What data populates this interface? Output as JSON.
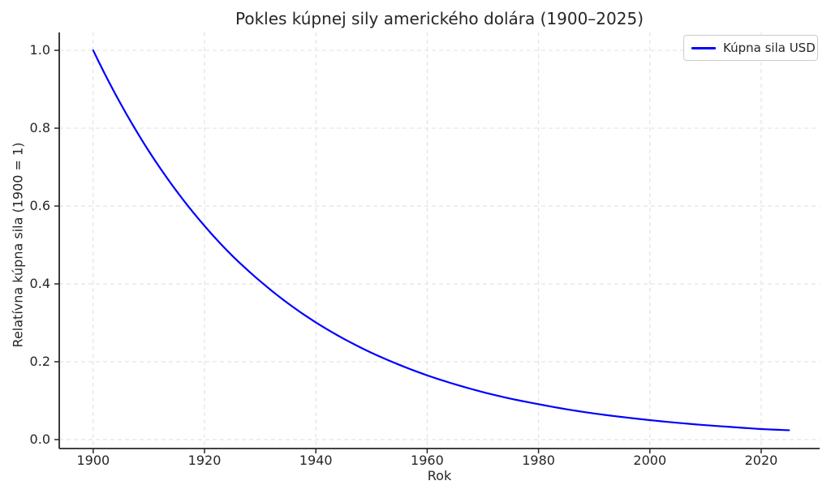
{
  "figure": {
    "title": "Pokles kúpnej sily amerického dolára (1900–2025)",
    "legend": {
      "label": "Kúpna sila USD"
    },
    "colors": {
      "line": "#0000ff",
      "grid": "#e3e3e3",
      "spine": "#262626",
      "tick": "#262626",
      "text": "#262626",
      "legend_border": "#cccccc",
      "background": "#ffffff"
    }
  },
  "chart_data": {
    "type": "line",
    "title": "Pokles kúpnej sily amerického dolára (1900–2025)",
    "xlabel": "Rok",
    "ylabel": "Relatívna kúpna sila (1900 = 1)",
    "legend_position": "upper right",
    "grid": true,
    "grid_style": "dashed",
    "xlim": [
      1893.9,
      2030.5
    ],
    "ylim": [
      -0.023,
      1.046
    ],
    "xticks": [
      1900,
      1920,
      1940,
      1960,
      1980,
      2000,
      2020
    ],
    "xtick_labels": [
      "1900",
      "1920",
      "1940",
      "1960",
      "1980",
      "2000",
      "2020"
    ],
    "yticks": [
      0.0,
      0.2,
      0.4,
      0.6,
      0.8,
      1.0
    ],
    "ytick_labels": [
      "0.0",
      "0.2",
      "0.4",
      "0.6",
      "0.8",
      "1.0"
    ],
    "series": [
      {
        "name": "Kúpna sila USD",
        "color": "#0000ff",
        "interpolation": "exponential",
        "x": [
          1900,
          1905,
          1910,
          1915,
          1920,
          1925,
          1930,
          1935,
          1940,
          1945,
          1950,
          1955,
          1960,
          1965,
          1970,
          1975,
          1980,
          1985,
          1990,
          1995,
          2000,
          2005,
          2010,
          2015,
          2020,
          2025
        ],
        "y": [
          1.0,
          0.861,
          0.741,
          0.638,
          0.549,
          0.472,
          0.407,
          0.35,
          0.301,
          0.259,
          0.223,
          0.192,
          0.165,
          0.142,
          0.122,
          0.105,
          0.091,
          0.078,
          0.067,
          0.058,
          0.05,
          0.043,
          0.037,
          0.032,
          0.027,
          0.024
        ]
      }
    ]
  }
}
